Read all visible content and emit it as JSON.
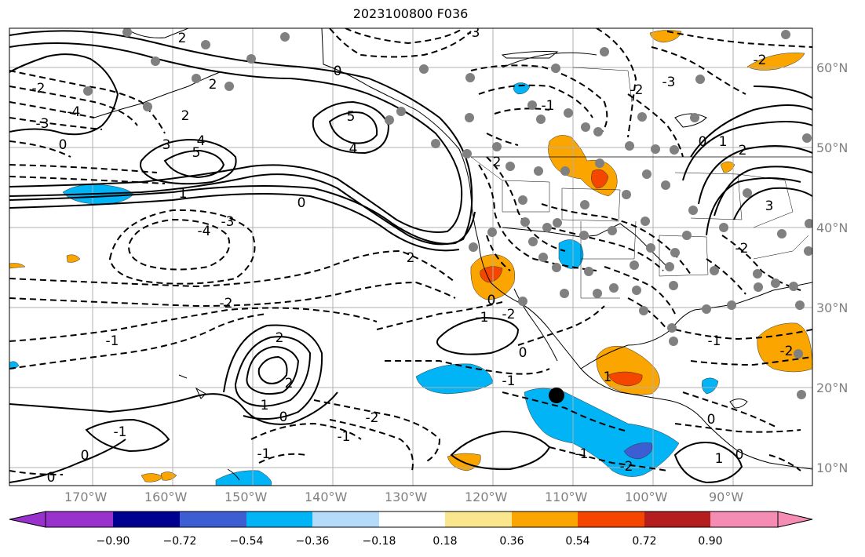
{
  "title": "2023100800 F036",
  "map": {
    "lat_labels": [
      "60°N",
      "50°N",
      "40°N",
      "30°N",
      "20°N",
      "10°N"
    ],
    "lon_labels": [
      "170°W",
      "160°W",
      "150°W",
      "140°W",
      "130°W",
      "120°W",
      "110°W",
      "100°W",
      "90°W"
    ],
    "contour_labels": [
      {
        "text": "2"
      },
      {
        "text": "-3"
      },
      {
        "text": "-2"
      },
      {
        "text": "0"
      },
      {
        "text": "-2"
      },
      {
        "text": "2"
      },
      {
        "text": "2"
      },
      {
        "text": "3"
      },
      {
        "text": "4"
      },
      {
        "text": "5"
      },
      {
        "text": "5"
      },
      {
        "text": "4"
      },
      {
        "text": "1"
      },
      {
        "text": "0"
      },
      {
        "text": "-3"
      },
      {
        "text": "-4"
      },
      {
        "text": "-2"
      },
      {
        "text": "-1"
      },
      {
        "text": "2"
      },
      {
        "text": "2"
      },
      {
        "text": "1"
      },
      {
        "text": "-1"
      },
      {
        "text": "0"
      },
      {
        "text": "-2"
      },
      {
        "text": "-1"
      },
      {
        "text": "0"
      },
      {
        "text": "-1"
      },
      {
        "text": "-1"
      },
      {
        "text": "0"
      },
      {
        "text": "-2"
      },
      {
        "text": "-1"
      },
      {
        "text": "0"
      },
      {
        "text": "-1"
      },
      {
        "text": "-2"
      },
      {
        "text": "1"
      },
      {
        "text": "0"
      },
      {
        "text": "-3"
      },
      {
        "text": "-2"
      },
      {
        "text": "0"
      },
      {
        "text": "1"
      },
      {
        "text": "3"
      },
      {
        "text": "2"
      },
      {
        "text": "-2"
      },
      {
        "text": "-1"
      },
      {
        "text": "0"
      },
      {
        "text": "-3"
      },
      {
        "text": "-4"
      },
      {
        "text": "2"
      },
      {
        "text": "-1"
      },
      {
        "text": "0"
      },
      {
        "text": "-2"
      },
      {
        "text": "0"
      },
      {
        "text": "2"
      },
      {
        "text": "1"
      }
    ]
  },
  "colorbar": {
    "colors": [
      "#9932cc",
      "#000090",
      "#3c5ed2",
      "#00b4f5",
      "#b4dcfa",
      "#ffffff",
      "#fae68c",
      "#faa500",
      "#f54600",
      "#b41e1e",
      "#f58cb4"
    ],
    "ticks": [
      "−0.90",
      "−0.72",
      "−0.54",
      "−0.36",
      "−0.18",
      "0.18",
      "0.36",
      "0.54",
      "0.72",
      "0.90"
    ]
  },
  "colors": {
    "station_dot": "#808080",
    "highlight_dot": "#000000",
    "grid": "#b0b0b0"
  }
}
